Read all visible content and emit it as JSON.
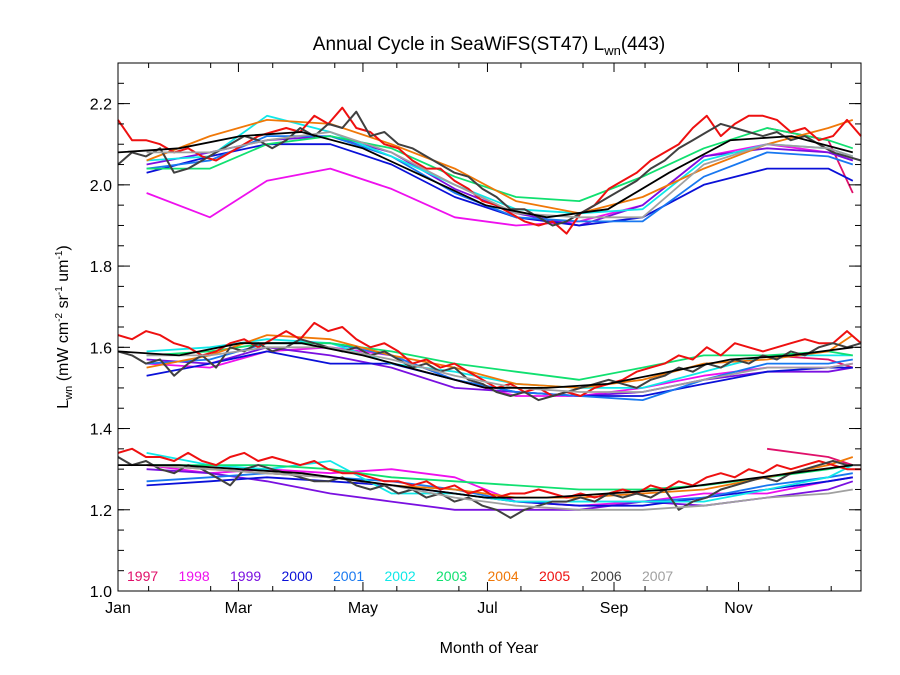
{
  "chart_data": {
    "type": "line",
    "title": "Annual Cycle in SeaWiFS(ST47) L",
    "title_sub": "wn",
    "title_suffix": "(443)",
    "xlabel": "Month of Year",
    "ylabel": {
      "main": "L",
      "sub": "wn",
      "units_open": " (mW cm",
      "sup1": "-2",
      "units_mid": " sr",
      "sup2": "-1",
      "units_mid2": " um",
      "sup3": "-1",
      "units_close": ")"
    },
    "xlim": [
      1,
      365
    ],
    "ylim": [
      1.0,
      2.3
    ],
    "xticks": [
      {
        "day": 1,
        "label": "Jan"
      },
      {
        "day": 60,
        "label": "Mar"
      },
      {
        "day": 121,
        "label": "May"
      },
      {
        "day": 182,
        "label": "Jul"
      },
      {
        "day": 244,
        "label": "Sep"
      },
      {
        "day": 305,
        "label": "Nov"
      }
    ],
    "yticks": [
      {
        "value": 1.0,
        "label": "1.0"
      },
      {
        "value": 1.2,
        "label": "1.2"
      },
      {
        "value": 1.4,
        "label": "1.4"
      },
      {
        "value": 1.6,
        "label": "1.6"
      },
      {
        "value": 1.8,
        "label": "1.8"
      },
      {
        "value": 2.0,
        "label": "2.0"
      },
      {
        "value": 2.2,
        "label": "2.2"
      }
    ],
    "legend_position": "bottom-left inside",
    "fit_color": "#000000",
    "fit": {
      "days": [
        1,
        31,
        61,
        91,
        121,
        151,
        181,
        211,
        241,
        271,
        301,
        331,
        361
      ],
      "upper": [
        2.08,
        2.09,
        2.12,
        2.13,
        2.09,
        2.02,
        1.95,
        1.92,
        1.94,
        2.03,
        2.11,
        2.12,
        2.08
      ],
      "middle": [
        1.59,
        1.58,
        1.61,
        1.61,
        1.58,
        1.54,
        1.5,
        1.5,
        1.51,
        1.54,
        1.57,
        1.58,
        1.6
      ],
      "lower": [
        1.31,
        1.31,
        1.3,
        1.29,
        1.27,
        1.25,
        1.23,
        1.23,
        1.24,
        1.25,
        1.27,
        1.29,
        1.31
      ]
    },
    "series": [
      {
        "name": "1997",
        "color": "#e0106a",
        "frequency": "monthly",
        "upper": [
          null,
          null,
          null,
          null,
          null,
          null,
          null,
          null,
          null,
          null,
          2.14,
          2.11,
          1.98
        ],
        "middle": [
          null,
          null,
          null,
          null,
          null,
          null,
          null,
          null,
          null,
          null,
          1.58,
          1.57,
          1.55
        ],
        "lower": [
          null,
          null,
          null,
          null,
          null,
          null,
          null,
          null,
          null,
          null,
          1.35,
          1.33,
          1.31
        ]
      },
      {
        "name": "1998",
        "color": "#ee10ee",
        "frequency": "monthly",
        "upper": [
          1.98,
          1.92,
          2.01,
          2.04,
          1.99,
          1.92,
          1.9,
          1.91,
          1.95,
          2.07,
          2.1,
          2.08,
          2.06
        ],
        "middle": [
          1.56,
          1.55,
          1.59,
          1.6,
          1.58,
          1.52,
          1.48,
          1.48,
          1.5,
          1.53,
          1.55,
          1.55,
          1.56
        ],
        "lower": [
          1.31,
          1.29,
          1.3,
          1.29,
          1.3,
          1.28,
          1.22,
          1.21,
          1.22,
          1.24,
          1.24,
          1.27,
          1.28
        ]
      },
      {
        "name": "1999",
        "color": "#7a10e0",
        "frequency": "monthly",
        "upper": [
          2.05,
          2.08,
          2.11,
          2.12,
          2.08,
          1.99,
          1.93,
          1.9,
          1.95,
          2.07,
          2.09,
          2.08,
          2.06
        ],
        "middle": [
          1.57,
          1.56,
          1.6,
          1.58,
          1.55,
          1.5,
          1.49,
          1.48,
          1.49,
          1.52,
          1.54,
          1.54,
          1.55
        ],
        "lower": [
          1.3,
          1.29,
          1.27,
          1.24,
          1.22,
          1.2,
          1.2,
          1.2,
          1.22,
          1.21,
          1.23,
          1.25,
          1.27
        ]
      },
      {
        "name": "2000",
        "color": "#0a10d8",
        "frequency": "monthly",
        "upper": [
          2.03,
          2.07,
          2.1,
          2.1,
          2.05,
          1.97,
          1.92,
          1.9,
          1.92,
          2.0,
          2.04,
          2.04,
          2.01
        ],
        "middle": [
          1.53,
          1.56,
          1.59,
          1.56,
          1.56,
          1.52,
          1.49,
          1.48,
          1.48,
          1.51,
          1.54,
          1.55,
          1.55
        ],
        "lower": [
          1.26,
          1.27,
          1.28,
          1.27,
          1.26,
          1.24,
          1.22,
          1.21,
          1.21,
          1.23,
          1.25,
          1.27,
          1.28
        ]
      },
      {
        "name": "2001",
        "color": "#1878f0",
        "frequency": "monthly",
        "upper": [
          2.04,
          2.06,
          2.12,
          2.12,
          2.07,
          1.98,
          1.92,
          1.91,
          1.91,
          2.02,
          2.08,
          2.07,
          2.05
        ],
        "middle": [
          1.56,
          1.57,
          1.61,
          1.61,
          1.58,
          1.52,
          1.49,
          1.48,
          1.47,
          1.52,
          1.56,
          1.56,
          1.57
        ],
        "lower": [
          1.27,
          1.28,
          1.29,
          1.28,
          1.27,
          1.25,
          1.22,
          1.22,
          1.22,
          1.23,
          1.26,
          1.28,
          1.29
        ]
      },
      {
        "name": "2002",
        "color": "#10e8e8",
        "frequency": "monthly",
        "upper": [
          2.06,
          2.07,
          2.17,
          2.13,
          2.07,
          2.0,
          1.94,
          1.93,
          1.94,
          2.06,
          2.1,
          2.09,
          2.07
        ],
        "middle": [
          1.59,
          1.6,
          1.62,
          1.61,
          1.56,
          1.54,
          1.51,
          1.5,
          1.5,
          1.54,
          1.58,
          1.58,
          1.58
        ],
        "lower": [
          1.34,
          1.31,
          1.3,
          1.32,
          1.24,
          1.24,
          1.22,
          1.22,
          1.22,
          1.22,
          1.25,
          1.28,
          1.31
        ]
      },
      {
        "name": "2003",
        "color": "#10e070",
        "frequency": "monthly",
        "upper": [
          2.04,
          2.04,
          2.1,
          2.12,
          2.09,
          2.02,
          1.97,
          1.96,
          2.02,
          2.09,
          2.14,
          2.11,
          2.09
        ],
        "middle": [
          1.58,
          1.59,
          1.61,
          1.61,
          1.59,
          1.56,
          1.54,
          1.52,
          1.55,
          1.58,
          1.58,
          1.59,
          1.58
        ],
        "lower": [
          1.31,
          1.31,
          1.31,
          1.3,
          1.28,
          1.27,
          1.26,
          1.25,
          1.25,
          1.26,
          1.28,
          1.3,
          1.31
        ]
      },
      {
        "name": "2004",
        "color": "#f07808",
        "frequency": "monthly",
        "upper": [
          2.06,
          2.12,
          2.16,
          2.15,
          2.1,
          2.04,
          1.96,
          1.93,
          1.97,
          2.04,
          2.1,
          2.14,
          2.16
        ],
        "middle": [
          1.55,
          1.58,
          1.63,
          1.62,
          1.58,
          1.55,
          1.51,
          1.5,
          1.52,
          1.56,
          1.57,
          1.59,
          1.63
        ],
        "lower": [
          1.31,
          1.3,
          1.29,
          1.28,
          1.26,
          1.25,
          1.23,
          1.23,
          1.24,
          1.25,
          1.28,
          1.31,
          1.33
        ]
      },
      {
        "name": "2005",
        "color": "#ee1010",
        "frequency": "weekly",
        "upper": [
          2.16,
          2.11,
          2.11,
          2.1,
          2.08,
          2.09,
          2.07,
          2.06,
          2.08,
          2.1,
          2.12,
          2.13,
          2.14,
          2.13,
          2.17,
          2.15,
          2.19,
          2.14,
          2.13,
          2.1,
          2.09,
          2.06,
          2.04,
          2.04,
          2.01,
          1.99,
          1.96,
          1.95,
          1.93,
          1.91,
          1.9,
          1.91,
          1.88,
          1.93,
          1.95,
          1.99,
          2.01,
          2.03,
          2.06,
          2.08,
          2.1,
          2.14,
          2.17,
          2.12,
          2.15,
          2.17,
          2.17,
          2.16,
          2.13,
          2.14,
          2.11,
          2.12,
          2.16,
          2.12
        ],
        "middle": [
          1.63,
          1.62,
          1.64,
          1.63,
          1.61,
          1.6,
          1.58,
          1.59,
          1.61,
          1.62,
          1.6,
          1.62,
          1.64,
          1.62,
          1.66,
          1.64,
          1.65,
          1.62,
          1.6,
          1.61,
          1.59,
          1.56,
          1.57,
          1.55,
          1.56,
          1.54,
          1.52,
          1.5,
          1.51,
          1.49,
          1.5,
          1.48,
          1.49,
          1.48,
          1.5,
          1.51,
          1.52,
          1.54,
          1.55,
          1.56,
          1.58,
          1.57,
          1.6,
          1.58,
          1.61,
          1.6,
          1.59,
          1.6,
          1.61,
          1.62,
          1.61,
          1.61,
          1.64,
          1.61
        ],
        "lower": [
          1.34,
          1.35,
          1.33,
          1.33,
          1.32,
          1.34,
          1.32,
          1.31,
          1.33,
          1.34,
          1.32,
          1.33,
          1.32,
          1.31,
          1.32,
          1.3,
          1.29,
          1.29,
          1.28,
          1.27,
          1.27,
          1.26,
          1.27,
          1.25,
          1.26,
          1.24,
          1.25,
          1.23,
          1.24,
          1.24,
          1.25,
          1.24,
          1.23,
          1.24,
          1.23,
          1.24,
          1.25,
          1.24,
          1.26,
          1.25,
          1.27,
          1.26,
          1.28,
          1.29,
          1.28,
          1.3,
          1.29,
          1.31,
          1.3,
          1.31,
          1.32,
          1.31,
          1.3,
          1.3
        ]
      },
      {
        "name": "2006",
        "color": "#404040",
        "frequency": "weekly",
        "upper": [
          2.05,
          2.08,
          2.07,
          2.09,
          2.03,
          2.04,
          2.06,
          2.08,
          2.1,
          2.12,
          2.11,
          2.09,
          2.11,
          2.14,
          2.12,
          2.15,
          2.14,
          2.18,
          2.12,
          2.13,
          2.1,
          2.09,
          2.07,
          2.05,
          2.03,
          2.02,
          1.99,
          1.97,
          1.94,
          1.94,
          1.92,
          1.9,
          1.91,
          1.93,
          1.95,
          1.97,
          1.99,
          2.01,
          2.04,
          2.06,
          2.09,
          2.11,
          2.13,
          2.15,
          2.14,
          2.13,
          2.12,
          2.13,
          2.11,
          2.12,
          2.1,
          2.08,
          2.07,
          2.06
        ],
        "middle": [
          1.59,
          1.58,
          1.56,
          1.57,
          1.53,
          1.56,
          1.58,
          1.55,
          1.6,
          1.59,
          1.61,
          1.59,
          1.6,
          1.62,
          1.61,
          1.6,
          1.59,
          1.6,
          1.58,
          1.59,
          1.57,
          1.55,
          1.56,
          1.54,
          1.55,
          1.52,
          1.51,
          1.49,
          1.48,
          1.49,
          1.47,
          1.48,
          1.49,
          1.5,
          1.51,
          1.52,
          1.51,
          1.5,
          1.52,
          1.53,
          1.55,
          1.54,
          1.56,
          1.55,
          1.57,
          1.56,
          1.58,
          1.57,
          1.59,
          1.58,
          1.6,
          1.61,
          1.6,
          1.61
        ],
        "lower": [
          1.33,
          1.31,
          1.32,
          1.3,
          1.29,
          1.31,
          1.3,
          1.28,
          1.26,
          1.3,
          1.31,
          1.3,
          1.29,
          1.28,
          1.27,
          1.27,
          1.28,
          1.26,
          1.25,
          1.26,
          1.24,
          1.25,
          1.23,
          1.24,
          1.22,
          1.23,
          1.21,
          1.2,
          1.18,
          1.2,
          1.21,
          1.22,
          1.22,
          1.23,
          1.22,
          1.24,
          1.23,
          1.24,
          1.23,
          1.25,
          1.2,
          1.22,
          1.23,
          1.25,
          1.26,
          1.27,
          1.28,
          1.27,
          1.29,
          1.3,
          1.31,
          1.32,
          1.31,
          1.31
        ]
      },
      {
        "name": "2007",
        "color": "#a0a0a0",
        "frequency": "monthly",
        "upper": [
          2.08,
          2.08,
          2.11,
          2.13,
          2.08,
          2.0,
          1.93,
          1.92,
          1.92,
          2.05,
          2.1,
          2.09,
          2.07
        ],
        "middle": [
          1.58,
          1.58,
          1.6,
          1.6,
          1.57,
          1.53,
          1.5,
          1.49,
          1.49,
          1.52,
          1.55,
          1.55,
          1.56
        ],
        "lower": [
          1.31,
          1.3,
          1.29,
          1.28,
          1.26,
          1.23,
          1.21,
          1.2,
          1.2,
          1.21,
          1.23,
          1.24,
          1.25
        ]
      }
    ]
  }
}
